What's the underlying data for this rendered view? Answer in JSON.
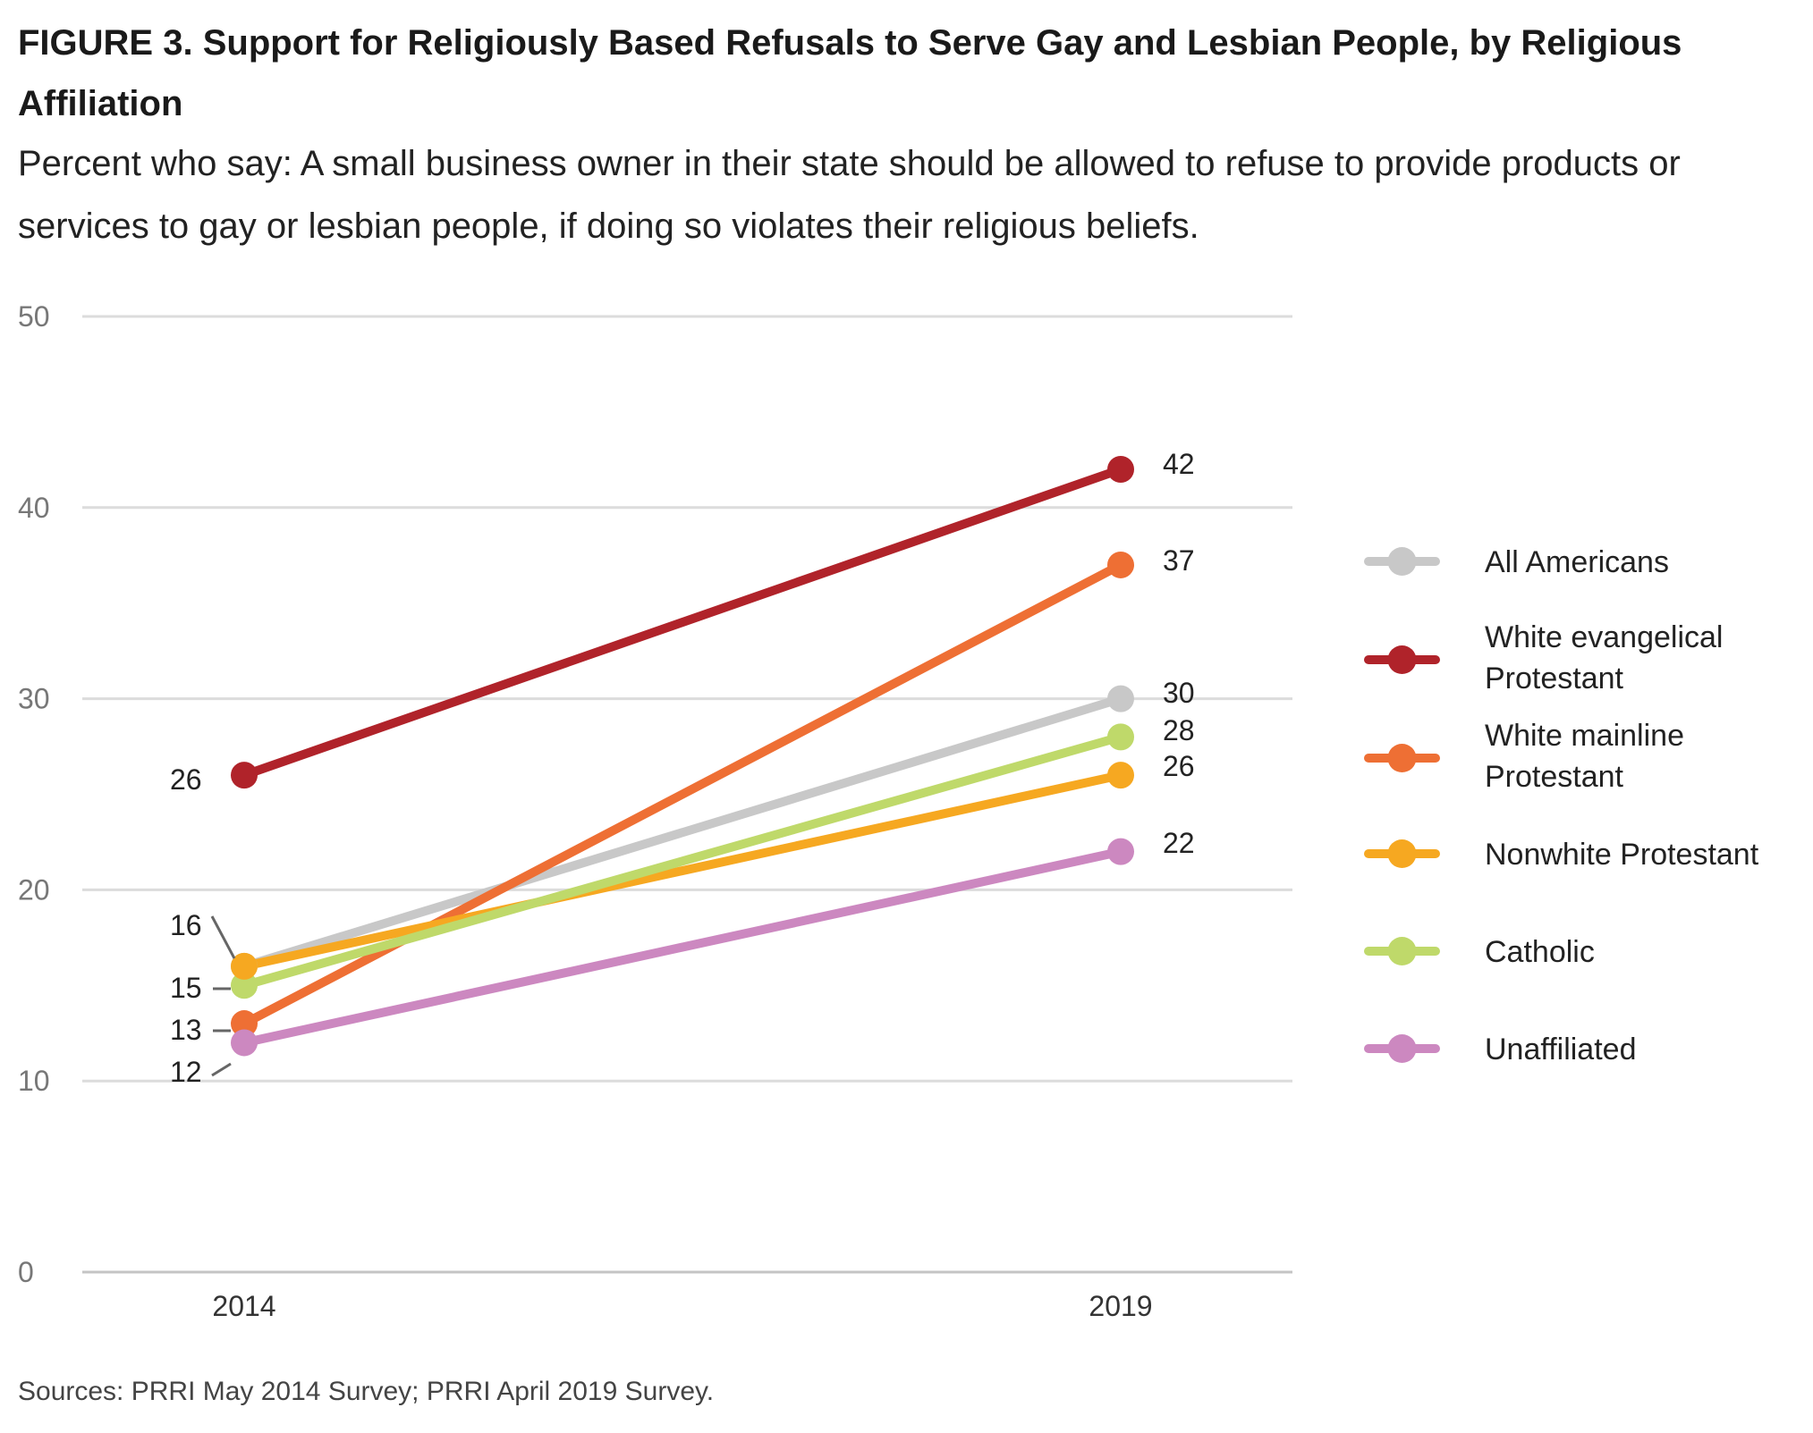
{
  "header": {
    "title": "FIGURE 3.  Support for Religiously Based Refusals to Serve Gay and Lesbian People, by Religious Affiliation",
    "subtitle": "Percent who say: A small business owner in their state should be allowed to refuse to provide products or services to gay or lesbian people, if doing so violates their religious beliefs."
  },
  "footer": {
    "source": "Sources: PRRI May 2014 Survey; PRRI April 2019 Survey."
  },
  "chart_data": {
    "type": "line",
    "title": "FIGURE 3.  Support for Religiously Based Refusals to Serve Gay and Lesbian People, by Religious Affiliation",
    "subtitle": "Percent who say: A small business owner in their state should be allowed to refuse to provide products or services to gay or lesbian people, if doing so violates their religious beliefs.",
    "xlabel": "",
    "ylabel": "",
    "categories": [
      "2014",
      "2019"
    ],
    "ylim": [
      0,
      50
    ],
    "yticks": [
      0,
      10,
      20,
      30,
      40,
      50
    ],
    "grid": true,
    "legend_position": "right",
    "series": [
      {
        "name": "All Americans",
        "values": [
          16,
          30
        ],
        "labels": [
          "16",
          "30"
        ],
        "color": "#c8c8c8"
      },
      {
        "name": "White evangelical Protestant",
        "values": [
          26,
          42
        ],
        "labels": [
          "26",
          "42"
        ],
        "color": "#b0232a"
      },
      {
        "name": "White mainline Protestant",
        "values": [
          13,
          37
        ],
        "labels": [
          "13",
          "37"
        ],
        "color": "#ee6f34"
      },
      {
        "name": "Nonwhite Protestant",
        "values": [
          16,
          26
        ],
        "labels": [
          "",
          "26"
        ],
        "color": "#f6a821"
      },
      {
        "name": "Catholic",
        "values": [
          15,
          28
        ],
        "labels": [
          "15",
          "28"
        ],
        "color": "#bfd96a"
      },
      {
        "name": "Unaffiliated",
        "values": [
          12,
          22
        ],
        "labels": [
          "12",
          "22"
        ],
        "color": "#cc88c0"
      }
    ]
  }
}
